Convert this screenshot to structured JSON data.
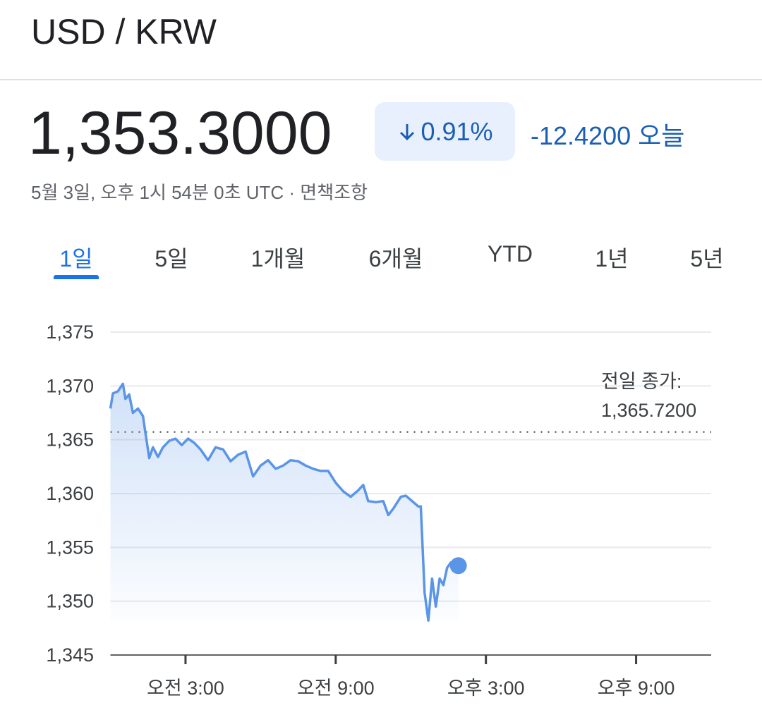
{
  "header": {
    "title": "USD / KRW"
  },
  "quote": {
    "price": "1,353.3000",
    "change_percent": "0.91%",
    "change": "-12.4200",
    "change_period": "오늘",
    "timestamp": "5월 3일, 오후 1시 54분 0초 UTC · 면책조항"
  },
  "tabs": {
    "items": [
      "1일",
      "5일",
      "1개월",
      "6개월",
      "YTD",
      "1년",
      "5년"
    ],
    "active": 0
  },
  "chart_data": {
    "type": "line",
    "x": [
      0,
      0.1,
      0.3,
      0.5,
      0.6,
      0.75,
      0.9,
      1.1,
      1.3,
      1.4,
      1.55,
      1.7,
      1.9,
      2.1,
      2.35,
      2.6,
      2.85,
      3.1,
      3.35,
      3.6,
      3.9,
      4.2,
      4.5,
      4.8,
      5.1,
      5.4,
      5.7,
      6.0,
      6.3,
      6.6,
      6.9,
      7.2,
      7.5,
      7.8,
      8.1,
      8.4,
      8.7,
      9.0,
      9.3,
      9.6,
      9.9,
      10.1,
      10.3,
      10.6,
      10.9,
      11.1,
      11.3,
      11.6,
      11.8,
      12.1,
      12.3,
      12.4,
      12.55,
      12.7,
      12.85,
      13.0,
      13.15,
      13.3,
      13.45,
      13.6,
      13.9
    ],
    "values": [
      1367.9,
      1369.3,
      1369.5,
      1370.2,
      1368.8,
      1369.2,
      1367.5,
      1367.9,
      1367.2,
      1365.6,
      1363.3,
      1364.3,
      1363.4,
      1364.3,
      1364.9,
      1365.1,
      1364.5,
      1365.1,
      1364.7,
      1364.1,
      1363.1,
      1364.3,
      1364.1,
      1363.0,
      1363.6,
      1363.9,
      1361.6,
      1362.6,
      1363.1,
      1362.3,
      1362.6,
      1363.1,
      1363.0,
      1362.6,
      1362.3,
      1362.1,
      1362.1,
      1361.0,
      1360.2,
      1359.7,
      1360.3,
      1360.8,
      1359.3,
      1359.2,
      1359.3,
      1358.0,
      1358.6,
      1359.7,
      1359.8,
      1359.2,
      1358.8,
      1358.8,
      1350.8,
      1348.2,
      1352.1,
      1349.5,
      1352.1,
      1351.5,
      1353.1,
      1353.6,
      1353.3
    ],
    "color": "#5b95e8",
    "xlim": [
      0,
      24
    ],
    "xticks": [
      {
        "value": 3,
        "label": "오전 3:00"
      },
      {
        "value": 9,
        "label": "오전 9:00"
      },
      {
        "value": 15,
        "label": "오후 3:00"
      },
      {
        "value": 21,
        "label": "오후 9:00"
      }
    ],
    "ylim": [
      1345,
      1375
    ],
    "yticks": [
      {
        "value": 1345,
        "label": "1,345"
      },
      {
        "value": 1350,
        "label": "1,350"
      },
      {
        "value": 1355,
        "label": "1,355"
      },
      {
        "value": 1360,
        "label": "1,360"
      },
      {
        "value": 1365,
        "label": "1,365"
      },
      {
        "value": 1370,
        "label": "1,370"
      },
      {
        "value": 1375,
        "label": "1,375"
      }
    ],
    "grid": true,
    "reference_title": "전일 종가:",
    "reference_line": {
      "value": 1365.72,
      "label": "1,365.7200"
    }
  }
}
